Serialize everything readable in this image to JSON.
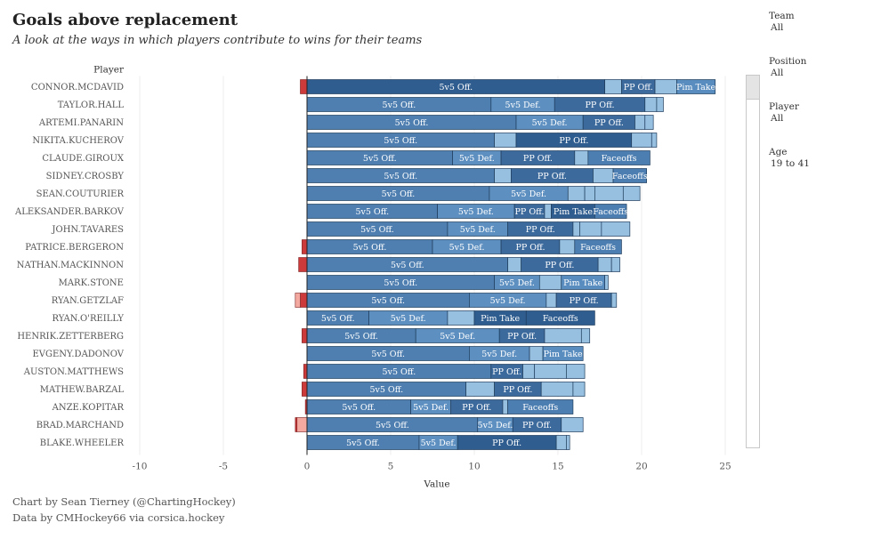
{
  "header": {
    "title": "Goals above replacement",
    "subtitle": "A look at the ways in which players contribute to wins for their teams"
  },
  "filters": [
    {
      "label": "Team",
      "value": "All"
    },
    {
      "label": "Position",
      "value": "All"
    },
    {
      "label": "Player",
      "value": "All"
    },
    {
      "label": "Age",
      "value": "19 to 41"
    }
  ],
  "footer": {
    "credit": "Chart by Sean Tierney (@ChartingHockey)",
    "source": "Data by CMHockey66 via corsica.hockey"
  },
  "colors": {
    "5v5 Off.": "#4f7fb0",
    "5v5 Def.": "#5d8fc0",
    "PP Off.": "#3d6a9c",
    "Pim Take": "#5a8dbf",
    "Faceoffs": "#4c7eb1",
    "Other": "#97bfe0",
    "Highlight": "#2f5d8f",
    "Negative": "#cc3a3a",
    "NegativeLight": "#f3a9a0"
  },
  "chart_data": {
    "type": "bar",
    "orientation": "horizontal",
    "stacked": true,
    "xlabel": "Value",
    "ylabel": "Player",
    "xlim": [
      -10,
      25
    ],
    "xticks": [
      -10,
      -5,
      0,
      5,
      10,
      15,
      20,
      25
    ],
    "grid": true,
    "players": [
      {
        "name": "CONNOR.MCDAVID",
        "neg": [
          {
            "v": -0.4
          }
        ],
        "pos": [
          {
            "v": 17.8,
            "label": "5v5 Off.",
            "hl": true
          },
          {
            "v": 1.0
          },
          {
            "v": 2.0,
            "label": "PP Off."
          },
          {
            "v": 1.3
          },
          {
            "v": 2.3,
            "label": "Pim Take"
          }
        ]
      },
      {
        "name": "TAYLOR.HALL",
        "neg": [],
        "pos": [
          {
            "v": 11.0,
            "label": "5v5 Off."
          },
          {
            "v": 3.8,
            "label": "5v5 Def."
          },
          {
            "v": 5.4,
            "label": "PP Off."
          },
          {
            "v": 0.7
          },
          {
            "v": 0.4
          }
        ]
      },
      {
        "name": "ARTEMI.PANARIN",
        "neg": [],
        "pos": [
          {
            "v": 12.5,
            "label": "5v5 Off."
          },
          {
            "v": 4.0,
            "label": "5v5 Def."
          },
          {
            "v": 3.1,
            "label": "PP Off."
          },
          {
            "v": 0.6
          },
          {
            "v": 0.5
          }
        ]
      },
      {
        "name": "NIKITA.KUCHEROV",
        "neg": [],
        "pos": [
          {
            "v": 11.2,
            "label": "5v5 Off."
          },
          {
            "v": 1.3
          },
          {
            "v": 6.9,
            "label": "PP Off.",
            "hl": true
          },
          {
            "v": 1.2
          },
          {
            "v": 0.3
          }
        ]
      },
      {
        "name": "CLAUDE.GIROUX",
        "neg": [],
        "pos": [
          {
            "v": 8.7,
            "label": "5v5 Off."
          },
          {
            "v": 2.9,
            "label": "5v5 Def."
          },
          {
            "v": 4.4,
            "label": "PP Off."
          },
          {
            "v": 0.8
          },
          {
            "v": 3.7,
            "label": "Faceoffs"
          }
        ]
      },
      {
        "name": "SIDNEY.CROSBY",
        "neg": [],
        "pos": [
          {
            "v": 11.2,
            "label": "5v5 Off."
          },
          {
            "v": 1.0
          },
          {
            "v": 4.9,
            "label": "PP Off."
          },
          {
            "v": 1.2
          },
          {
            "v": 2.0,
            "label": "Faceoffs"
          }
        ]
      },
      {
        "name": "SEAN.COUTURIER",
        "neg": [],
        "pos": [
          {
            "v": 10.9,
            "label": "5v5 Off."
          },
          {
            "v": 4.7,
            "label": "5v5 Def."
          },
          {
            "v": 1.0
          },
          {
            "v": 0.6
          },
          {
            "v": 1.7
          },
          {
            "v": 1.0
          }
        ]
      },
      {
        "name": "ALEKSANDER.BARKOV",
        "neg": [],
        "pos": [
          {
            "v": 7.8,
            "label": "5v5 Off."
          },
          {
            "v": 4.6,
            "label": "5v5 Def."
          },
          {
            "v": 1.8,
            "label": "PP Off."
          },
          {
            "v": 0.4
          },
          {
            "v": 2.6,
            "label": "Pim Take",
            "hl": true
          },
          {
            "v": 1.9,
            "label": "Faceoffs"
          }
        ]
      },
      {
        "name": "JOHN.TAVARES",
        "neg": [],
        "pos": [
          {
            "v": 8.4,
            "label": "5v5 Off."
          },
          {
            "v": 3.6,
            "label": "5v5 Def."
          },
          {
            "v": 3.9,
            "label": "PP Off."
          },
          {
            "v": 0.4
          },
          {
            "v": 1.3
          },
          {
            "v": 1.7
          }
        ]
      },
      {
        "name": "PATRICE.BERGERON",
        "neg": [
          {
            "v": -0.3
          }
        ],
        "pos": [
          {
            "v": 7.5,
            "label": "5v5 Off."
          },
          {
            "v": 4.1,
            "label": "5v5 Def."
          },
          {
            "v": 3.5,
            "label": "PP Off."
          },
          {
            "v": 0.9
          },
          {
            "v": 2.8,
            "label": "Faceoffs"
          }
        ]
      },
      {
        "name": "NATHAN.MACKINNON",
        "neg": [
          {
            "v": -0.5
          }
        ],
        "pos": [
          {
            "v": 12.0,
            "label": "5v5 Off."
          },
          {
            "v": 0.8
          },
          {
            "v": 4.6,
            "label": "PP Off."
          },
          {
            "v": 0.8
          },
          {
            "v": 0.5
          }
        ]
      },
      {
        "name": "MARK.STONE",
        "neg": [],
        "pos": [
          {
            "v": 11.2,
            "label": "5v5 Off."
          },
          {
            "v": 2.7,
            "label": "5v5 Def."
          },
          {
            "v": 1.3
          },
          {
            "v": 2.6,
            "label": "Pim Take"
          },
          {
            "v": 0.2
          }
        ]
      },
      {
        "name": "RYAN.GETZLAF",
        "neg": [
          {
            "v": -0.4
          },
          {
            "v": -0.3,
            "light": true
          }
        ],
        "pos": [
          {
            "v": 9.7,
            "label": "5v5 Off."
          },
          {
            "v": 4.6,
            "label": "5v5 Def."
          },
          {
            "v": 0.6
          },
          {
            "v": 3.3,
            "label": "PP Off."
          },
          {
            "v": 0.3
          }
        ]
      },
      {
        "name": "RYAN.O'REILLY",
        "neg": [],
        "pos": [
          {
            "v": 3.7,
            "label": "5v5 Off."
          },
          {
            "v": 4.7,
            "label": "5v5 Def."
          },
          {
            "v": 1.6
          },
          {
            "v": 3.1,
            "label": "Pim Take",
            "hl": true
          },
          {
            "v": 4.1,
            "label": "Faceoffs",
            "hl": true
          }
        ]
      },
      {
        "name": "HENRIK.ZETTERBERG",
        "neg": [
          {
            "v": -0.3
          }
        ],
        "pos": [
          {
            "v": 6.5,
            "label": "5v5 Off."
          },
          {
            "v": 5.0,
            "label": "5v5 Def."
          },
          {
            "v": 2.7,
            "label": "PP Off."
          },
          {
            "v": 2.2
          },
          {
            "v": 0.5
          }
        ]
      },
      {
        "name": "EVGENY.DADONOV",
        "neg": [],
        "pos": [
          {
            "v": 9.7,
            "label": "5v5 Off."
          },
          {
            "v": 3.6,
            "label": "5v5 Def."
          },
          {
            "v": 0.8
          },
          {
            "v": 2.4,
            "label": "Pim Take"
          }
        ]
      },
      {
        "name": "AUSTON.MATTHEWS",
        "neg": [
          {
            "v": -0.2
          }
        ],
        "pos": [
          {
            "v": 11.0,
            "label": "5v5 Off."
          },
          {
            "v": 1.9,
            "label": "PP Off."
          },
          {
            "v": 0.7
          },
          {
            "v": 1.9
          },
          {
            "v": 1.1
          }
        ]
      },
      {
        "name": "MATHEW.BARZAL",
        "neg": [
          {
            "v": -0.3
          }
        ],
        "pos": [
          {
            "v": 9.5,
            "label": "5v5 Off."
          },
          {
            "v": 1.7
          },
          {
            "v": 2.8,
            "label": "PP Off."
          },
          {
            "v": 1.9
          },
          {
            "v": 0.7
          }
        ]
      },
      {
        "name": "ANZE.KOPITAR",
        "neg": [
          {
            "v": -0.1
          }
        ],
        "pos": [
          {
            "v": 6.2,
            "label": "5v5 Off."
          },
          {
            "v": 2.4,
            "label": "5v5 Def."
          },
          {
            "v": 3.1,
            "label": "PP Off."
          },
          {
            "v": 0.3
          },
          {
            "v": 3.9,
            "label": "Faceoffs"
          }
        ]
      },
      {
        "name": "BRAD.MARCHAND",
        "neg": [
          {
            "v": -0.6,
            "light": true
          },
          {
            "v": -0.1
          }
        ],
        "pos": [
          {
            "v": 10.2,
            "label": "5v5 Off."
          },
          {
            "v": 2.1,
            "label": "5v5 Def."
          },
          {
            "v": 2.9,
            "label": "PP Off."
          },
          {
            "v": 1.3
          }
        ]
      },
      {
        "name": "BLAKE.WHEELER",
        "neg": [],
        "pos": [
          {
            "v": 6.7,
            "label": "5v5 Off."
          },
          {
            "v": 2.3,
            "label": "5v5 Def."
          },
          {
            "v": 5.9,
            "label": "PP Off.",
            "hl": true
          },
          {
            "v": 0.6
          },
          {
            "v": 0.2
          }
        ]
      }
    ]
  }
}
